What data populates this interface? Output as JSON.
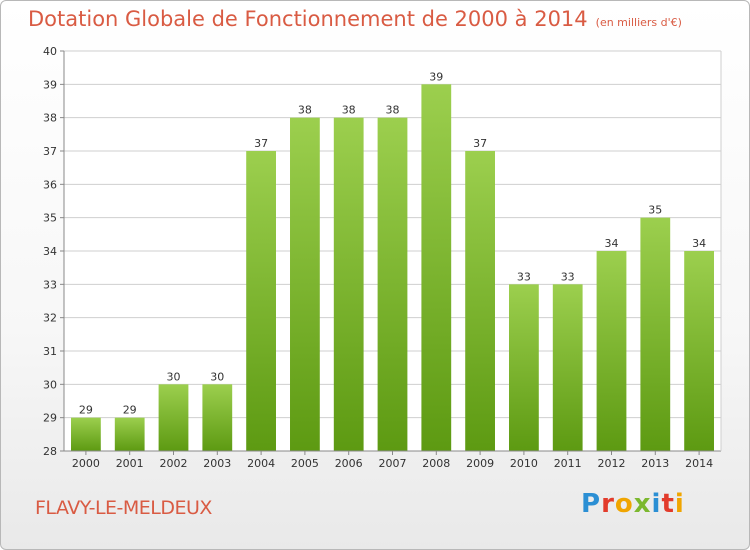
{
  "title": "Dotation Globale de Fonctionnement de 2000 à 2014",
  "subtitle": "(en milliers d'€)",
  "commune": "FLAVY-LE-MELDEUX",
  "logo": {
    "letters": [
      "P",
      "r",
      "o",
      "x",
      "i",
      "t",
      "i"
    ],
    "colors": [
      "#2b8fd4",
      "#e23b2b",
      "#f0a500",
      "#7cb82f",
      "#2b8fd4",
      "#e23b2b",
      "#f0a500"
    ]
  },
  "chart_data": {
    "type": "bar",
    "categories": [
      "2000",
      "2001",
      "2002",
      "2003",
      "2004",
      "2005",
      "2006",
      "2007",
      "2008",
      "2009",
      "2010",
      "2011",
      "2012",
      "2013",
      "2014"
    ],
    "values": [
      29,
      29,
      30,
      30,
      37,
      38,
      38,
      38,
      39,
      37,
      33,
      33,
      34,
      35,
      34
    ],
    "title": "Dotation Globale de Fonctionnement de 2000 à 2014",
    "subtitle": "(en milliers d'€)",
    "ylim": [
      28,
      40
    ],
    "yticks": [
      28,
      29,
      30,
      31,
      32,
      33,
      34,
      35,
      36,
      37,
      38,
      39,
      40
    ],
    "grid": true,
    "colors": {
      "bar_top": "#9ccf4e",
      "bar_bottom": "#5d9a12",
      "grid": "#cfcfcf",
      "text": "#333333"
    }
  }
}
